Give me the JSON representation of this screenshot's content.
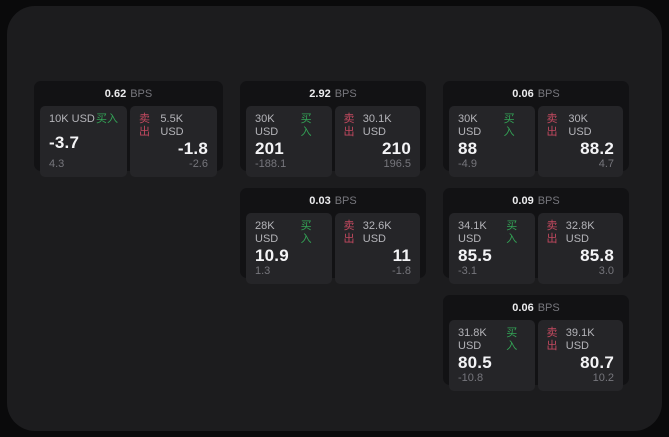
{
  "labels": {
    "bps_unit": "BPS",
    "buy": "买入",
    "sell": "卖出"
  },
  "theme": {
    "outer_background": "#0a0a0b",
    "panel_background": "#1c1c1e",
    "card_background": "#121214",
    "cell_background": "#252528",
    "buy_color": "#33a456",
    "sell_color": "#c2495f",
    "primary_text": "#f4f4f6",
    "muted_text": "#76767c"
  },
  "cards": [
    {
      "bps": "0.62",
      "buy": {
        "amount": "10K USD",
        "value": "-3.7",
        "sub": "4.3"
      },
      "sell": {
        "amount": "5.5K USD",
        "value": "-1.8",
        "sub": "-2.6"
      }
    },
    {
      "bps": "2.92",
      "buy": {
        "amount": "30K USD",
        "value": "201",
        "sub": "-188.1"
      },
      "sell": {
        "amount": "30.1K USD",
        "value": "210",
        "sub": "196.5"
      }
    },
    {
      "bps": "0.06",
      "buy": {
        "amount": "30K USD",
        "value": "88",
        "sub": "-4.9"
      },
      "sell": {
        "amount": "30K USD",
        "value": "88.2",
        "sub": "4.7"
      }
    },
    {
      "bps": "0.03",
      "buy": {
        "amount": "28K USD",
        "value": "10.9",
        "sub": "1.3"
      },
      "sell": {
        "amount": "32.6K USD",
        "value": "11",
        "sub": "-1.8"
      }
    },
    {
      "bps": "0.09",
      "buy": {
        "amount": "34.1K USD",
        "value": "85.5",
        "sub": "-3.1"
      },
      "sell": {
        "amount": "32.8K USD",
        "value": "85.8",
        "sub": "3.0"
      }
    },
    {
      "bps": "0.06",
      "buy": {
        "amount": "31.8K USD",
        "value": "80.5",
        "sub": "-10.8"
      },
      "sell": {
        "amount": "39.1K USD",
        "value": "80.7",
        "sub": "10.2"
      }
    }
  ]
}
